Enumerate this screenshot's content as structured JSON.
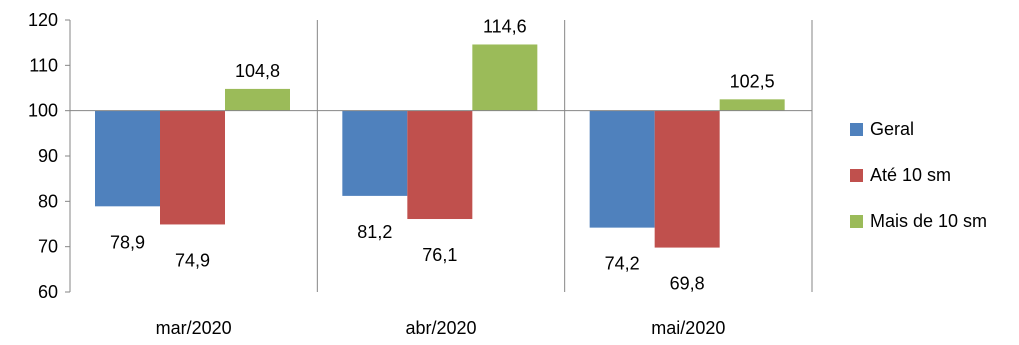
{
  "chart_data": {
    "type": "bar",
    "title": "",
    "xlabel": "",
    "ylabel": "",
    "categories": [
      "mar/2020",
      "abr/2020",
      "mai/2020"
    ],
    "baseline": 100,
    "ylim": [
      60,
      120
    ],
    "yticks": [
      60,
      70,
      80,
      90,
      100,
      110,
      120
    ],
    "ytick_labels": [
      "60",
      "70",
      "80",
      "90",
      "100",
      "110",
      "120"
    ],
    "series": [
      {
        "name": "Geral",
        "color": "#4F81BD",
        "values": [
          78.9,
          81.2,
          74.2
        ],
        "labels": [
          "78,9",
          "81,2",
          "74,2"
        ]
      },
      {
        "name": "Até 10 sm",
        "color": "#C0504D",
        "values": [
          74.9,
          76.1,
          69.8
        ],
        "labels": [
          "74,9",
          "76,1",
          "69,8"
        ]
      },
      {
        "name": "Mais de 10 sm",
        "color": "#9BBB59",
        "values": [
          104.8,
          114.6,
          102.5
        ],
        "labels": [
          "104,8",
          "114,6",
          "102,5"
        ]
      }
    ],
    "grid": false,
    "legend_position": "right"
  }
}
